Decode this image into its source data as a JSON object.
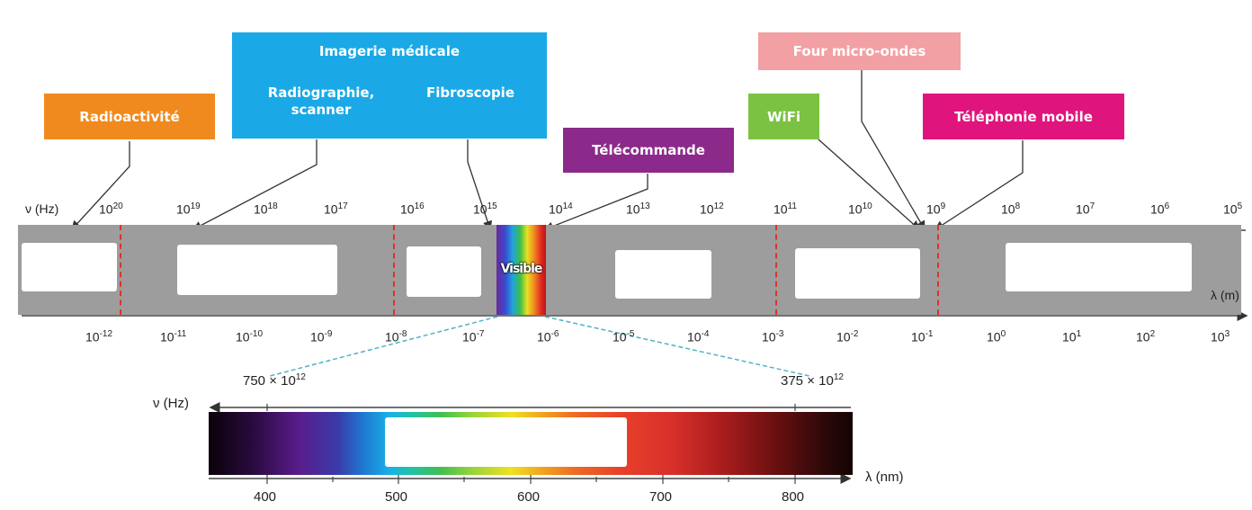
{
  "boxes": {
    "radioactivite": "Radioactivité",
    "imagerie_title": "Imagerie médicale",
    "radiographie": "Radiographie, scanner",
    "fibroscopie": "Fibroscopie",
    "telecommande": "Télécommande",
    "wifi": "WiFi",
    "four": "Four micro-ondes",
    "telephonie": "Téléphonie mobile"
  },
  "colors": {
    "radioactivite": "#f08a1f",
    "imagerie": "#1aa9e6",
    "telecommande": "#8b2a8a",
    "wifi": "#7cc242",
    "four": "#f2a0a3",
    "telephonie": "#e0147d"
  },
  "axis_top": {
    "label": "ν (Hz)",
    "ticks": [
      {
        "base": "10",
        "exp": "20"
      },
      {
        "base": "10",
        "exp": "19"
      },
      {
        "base": "10",
        "exp": "18"
      },
      {
        "base": "10",
        "exp": "17"
      },
      {
        "base": "10",
        "exp": "16"
      },
      {
        "base": "10",
        "exp": "15"
      },
      {
        "base": "10",
        "exp": "14"
      },
      {
        "base": "10",
        "exp": "13"
      },
      {
        "base": "10",
        "exp": "12"
      },
      {
        "base": "10",
        "exp": "11"
      },
      {
        "base": "10",
        "exp": "10"
      },
      {
        "base": "10",
        "exp": "9"
      },
      {
        "base": "10",
        "exp": "8"
      },
      {
        "base": "10",
        "exp": "7"
      },
      {
        "base": "10",
        "exp": "6"
      },
      {
        "base": "10",
        "exp": "5"
      }
    ]
  },
  "axis_bottom": {
    "label": "λ (m)",
    "ticks": [
      {
        "base": "10",
        "exp": "-12"
      },
      {
        "base": "10",
        "exp": "-11"
      },
      {
        "base": "10",
        "exp": "-10"
      },
      {
        "base": "10",
        "exp": "-9"
      },
      {
        "base": "10",
        "exp": "-8"
      },
      {
        "base": "10",
        "exp": "-7"
      },
      {
        "base": "10",
        "exp": "-6"
      },
      {
        "base": "10",
        "exp": "-5"
      },
      {
        "base": "10",
        "exp": "-4"
      },
      {
        "base": "10",
        "exp": "-3"
      },
      {
        "base": "10",
        "exp": "-2"
      },
      {
        "base": "10",
        "exp": "-1"
      },
      {
        "base": "10",
        "exp": "0"
      },
      {
        "base": "10",
        "exp": "1"
      },
      {
        "base": "10",
        "exp": "2"
      },
      {
        "base": "10",
        "exp": "3"
      }
    ]
  },
  "visible_label": "Visible",
  "zoom": {
    "freq_label": "ν (Hz)",
    "freq_left": "750 × 10",
    "freq_left_exp": "12",
    "freq_right": "375 × 10",
    "freq_right_exp": "12",
    "wl_label": "λ (nm)",
    "wl_ticks": [
      "400",
      "500",
      "600",
      "700",
      "800"
    ]
  }
}
